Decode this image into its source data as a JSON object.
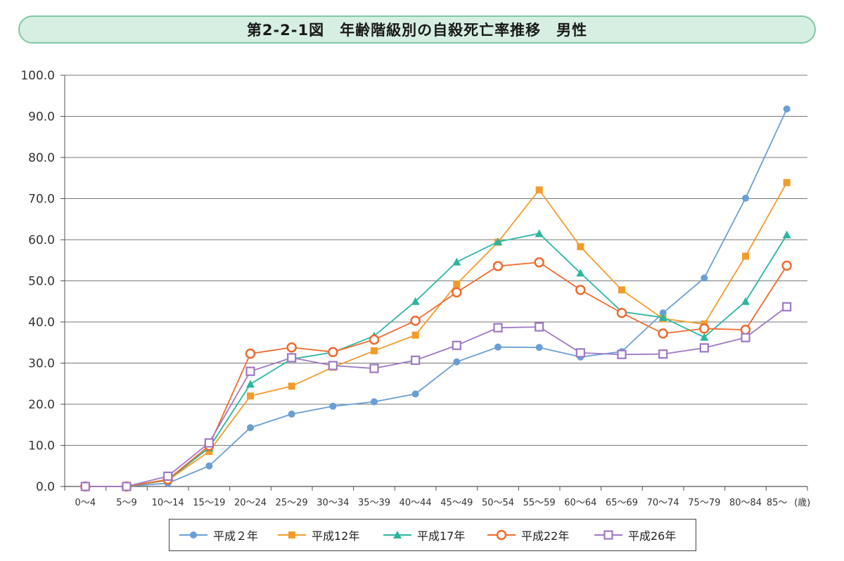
{
  "title": "第2-2-1図　年齢階級別の自殺死亡率推移　男性",
  "chart_data": {
    "type": "line",
    "title": "第2-2-1図　年齢階級別の自殺死亡率推移　男性",
    "xlabel": "",
    "x_unit": "(歳)",
    "ylabel": "",
    "ylim": [
      0,
      100
    ],
    "yticks": [
      "0.0",
      "10.0",
      "20.0",
      "30.0",
      "40.0",
      "50.0",
      "60.0",
      "70.0",
      "80.0",
      "90.0",
      "100.0"
    ],
    "categories": [
      "0～4",
      "5～9",
      "10～14",
      "15～19",
      "20～24",
      "25～29",
      "30～34",
      "35～39",
      "40～44",
      "45～49",
      "50～54",
      "55～59",
      "60～64",
      "65～69",
      "70～74",
      "75～79",
      "80～84",
      "85～"
    ],
    "series": [
      {
        "name": "平成２年",
        "color": "#6a9fd4",
        "marker": "circle",
        "values": [
          0.0,
          0.0,
          0.8,
          5.0,
          14.3,
          17.6,
          19.5,
          20.6,
          22.5,
          30.3,
          33.9,
          33.8,
          31.5,
          32.8,
          42.2,
          50.7,
          70.1,
          91.8
        ]
      },
      {
        "name": "平成12年",
        "color": "#f39c2b",
        "marker": "square",
        "values": [
          0.0,
          0.0,
          1.5,
          8.5,
          22.0,
          24.4,
          29.0,
          33.0,
          36.8,
          49.2,
          59.4,
          72.1,
          58.3,
          47.8,
          40.8,
          39.5,
          56.0,
          73.9
        ]
      },
      {
        "name": "平成17年",
        "color": "#2bb6a0",
        "marker": "triangle",
        "values": [
          0.0,
          0.0,
          1.6,
          9.4,
          24.9,
          31.0,
          32.6,
          36.6,
          45.0,
          54.6,
          59.5,
          61.5,
          51.9,
          42.5,
          41.1,
          36.3,
          45.0,
          61.2
        ]
      },
      {
        "name": "平成22年",
        "color": "#ef6a2e",
        "marker": "circle-open",
        "values": [
          0.0,
          0.0,
          1.7,
          9.9,
          32.3,
          33.8,
          32.7,
          35.7,
          40.3,
          47.2,
          53.6,
          54.5,
          47.8,
          42.2,
          37.2,
          38.4,
          38.1,
          53.7
        ]
      },
      {
        "name": "平成26年",
        "color": "#9f78c4",
        "marker": "square-open",
        "values": [
          0.0,
          0.0,
          2.5,
          10.6,
          28.0,
          31.3,
          29.4,
          28.7,
          30.7,
          34.3,
          38.6,
          38.8,
          32.5,
          32.1,
          32.2,
          33.7,
          36.2,
          43.7
        ]
      }
    ]
  }
}
